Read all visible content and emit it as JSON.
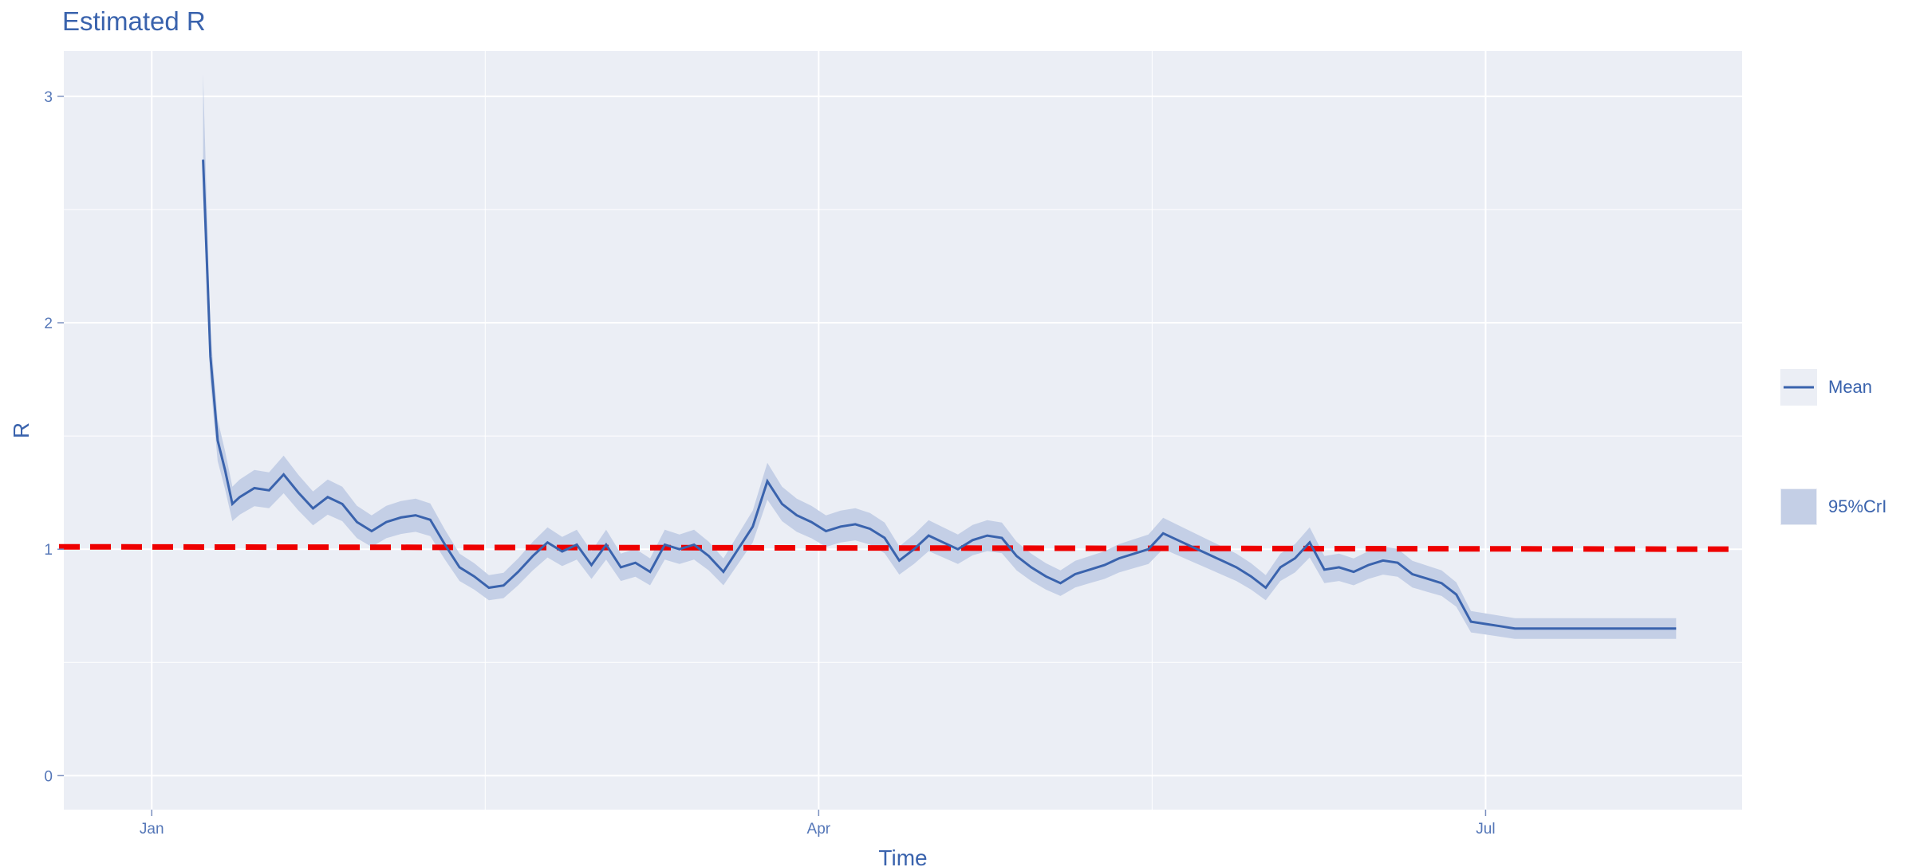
{
  "chart_data": {
    "type": "line",
    "title": "Estimated R",
    "xlabel": "Time",
    "ylabel": "R",
    "x_ticks": [
      "Jan",
      "Apr",
      "Jul"
    ],
    "x_tick_dates": [
      "2020-01-01",
      "2020-04-01",
      "2020-07-01"
    ],
    "x_range": [
      "2019-12-20",
      "2020-08-05"
    ],
    "y_ticks": [
      0,
      1,
      2,
      3
    ],
    "ylim": [
      -0.15,
      3.2
    ],
    "grid": true,
    "legend_position": "right",
    "reference_line": {
      "y": 1,
      "style": "dashed",
      "color": "#ee0000"
    },
    "colors": {
      "mean": "#3a63ad",
      "band": "#c4cfe6",
      "panel": "#ebeef5"
    },
    "legend": [
      {
        "label": "Mean",
        "kind": "line"
      },
      {
        "label": "95%CrI",
        "kind": "band"
      }
    ],
    "series": [
      {
        "name": "Mean",
        "x": [
          "2020-01-08",
          "2020-01-09",
          "2020-01-10",
          "2020-01-11",
          "2020-01-12",
          "2020-01-13",
          "2020-01-15",
          "2020-01-17",
          "2020-01-19",
          "2020-01-21",
          "2020-01-23",
          "2020-01-25",
          "2020-01-27",
          "2020-01-29",
          "2020-01-31",
          "2020-02-02",
          "2020-02-04",
          "2020-02-06",
          "2020-02-08",
          "2020-02-10",
          "2020-02-12",
          "2020-02-14",
          "2020-02-16",
          "2020-02-18",
          "2020-02-20",
          "2020-02-22",
          "2020-02-24",
          "2020-02-26",
          "2020-02-28",
          "2020-03-01",
          "2020-03-03",
          "2020-03-05",
          "2020-03-07",
          "2020-03-09",
          "2020-03-11",
          "2020-03-13",
          "2020-03-15",
          "2020-03-17",
          "2020-03-19",
          "2020-03-21",
          "2020-03-23",
          "2020-03-25",
          "2020-03-27",
          "2020-03-29",
          "2020-03-31",
          "2020-04-02",
          "2020-04-04",
          "2020-04-06",
          "2020-04-08",
          "2020-04-10",
          "2020-04-12",
          "2020-04-14",
          "2020-04-16",
          "2020-04-18",
          "2020-04-20",
          "2020-04-22",
          "2020-04-24",
          "2020-04-26",
          "2020-04-28",
          "2020-04-30",
          "2020-05-02",
          "2020-05-04",
          "2020-05-06",
          "2020-05-08",
          "2020-05-10",
          "2020-05-12",
          "2020-05-14",
          "2020-05-16",
          "2020-05-18",
          "2020-05-20",
          "2020-05-22",
          "2020-05-24",
          "2020-05-26",
          "2020-05-28",
          "2020-05-30",
          "2020-06-01",
          "2020-06-03",
          "2020-06-05",
          "2020-06-07",
          "2020-06-09",
          "2020-06-11",
          "2020-06-13",
          "2020-06-15",
          "2020-06-17",
          "2020-06-19",
          "2020-06-21",
          "2020-06-23",
          "2020-06-25",
          "2020-06-27",
          "2020-06-29",
          "2020-07-01",
          "2020-07-03",
          "2020-07-05",
          "2020-07-07",
          "2020-07-09",
          "2020-07-11",
          "2020-07-13",
          "2020-07-15",
          "2020-07-17",
          "2020-07-19",
          "2020-07-21",
          "2020-07-23",
          "2020-07-25",
          "2020-07-27"
        ],
        "values": [
          2.72,
          1.85,
          1.48,
          1.35,
          1.2,
          1.23,
          1.27,
          1.26,
          1.33,
          1.25,
          1.18,
          1.23,
          1.2,
          1.12,
          1.08,
          1.12,
          1.14,
          1.15,
          1.13,
          1.02,
          0.92,
          0.88,
          0.83,
          0.84,
          0.9,
          0.97,
          1.03,
          0.99,
          1.02,
          0.93,
          1.02,
          0.92,
          0.94,
          0.9,
          1.02,
          1.0,
          1.02,
          0.97,
          0.9,
          1.0,
          1.1,
          1.3,
          1.2,
          1.15,
          1.12,
          1.08,
          1.1,
          1.11,
          1.09,
          1.05,
          0.95,
          1.0,
          1.06,
          1.03,
          1.0,
          1.04,
          1.06,
          1.05,
          0.97,
          0.92,
          0.88,
          0.85,
          0.89,
          0.91,
          0.93,
          0.96,
          0.98,
          1.0,
          1.07,
          1.04,
          1.01,
          0.98,
          0.95,
          0.92,
          0.88,
          0.83,
          0.92,
          0.96,
          1.03,
          0.91,
          0.92,
          0.9,
          0.93,
          0.95,
          0.94,
          0.89,
          0.87,
          0.85,
          0.8,
          0.68,
          0.67,
          0.66,
          0.65,
          0.65,
          0.65,
          0.65,
          0.65,
          0.65,
          0.65,
          0.65,
          0.65,
          0.65,
          0.65,
          0.65
        ]
      }
    ]
  }
}
